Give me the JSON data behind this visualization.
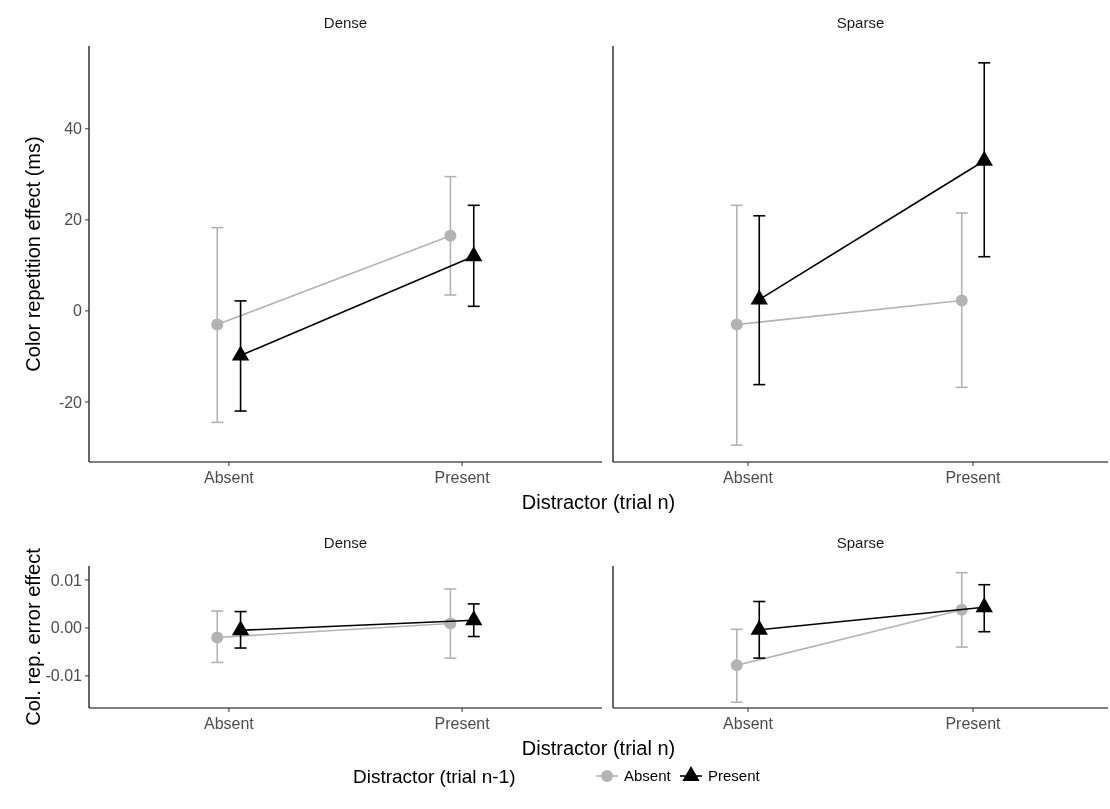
{
  "chart_data": [
    {
      "type": "line",
      "title": "Dense",
      "ylabel": "Color repetition effect (ms)",
      "xlabel": "Distractor (trial n)",
      "categories": [
        "Absent",
        "Present"
      ],
      "ylim": [
        -33.2,
        58.2
      ],
      "yticks": [
        -20,
        0,
        20,
        40
      ],
      "grid": false,
      "legend": false,
      "series": [
        {
          "color": "#b3b3b3",
          "marker": "circle",
          "values": [
            -3,
            16.5
          ],
          "errors": [
            [
              -24.5,
              18.3
            ],
            [
              3.5,
              29.5
            ]
          ]
        },
        {
          "color": "#000000",
          "marker": "triangle",
          "values": [
            -9.8,
            12
          ],
          "errors": [
            [
              -22,
              2.2
            ],
            [
              1,
              23.2
            ]
          ]
        }
      ]
    },
    {
      "type": "line",
      "title": "Sparse",
      "categories": [
        "Absent",
        "Present"
      ],
      "ylim": [
        -33.2,
        58.2
      ],
      "tick_labels": "x",
      "grid": false,
      "legend": false,
      "series": [
        {
          "color": "#b3b3b3",
          "marker": "circle",
          "values": [
            -3,
            2.3
          ],
          "errors": [
            [
              -29.5,
              23.2
            ],
            [
              -16.8,
              21.5
            ]
          ]
        },
        {
          "color": "#000000",
          "marker": "triangle",
          "values": [
            2.5,
            33
          ],
          "errors": [
            [
              -16.2,
              20.9
            ],
            [
              11.9,
              54.5
            ]
          ]
        }
      ]
    },
    {
      "type": "line",
      "title": "Dense",
      "ylabel": "Col. rep. error effect",
      "xlabel": "Distractor (trial n)",
      "categories": [
        "Absent",
        "Present"
      ],
      "ylim": [
        -0.0167,
        0.0129
      ],
      "yticks": [
        {
          "value": -0.01,
          "label": "-0.01"
        },
        {
          "value": 0,
          "label": "0.00"
        },
        {
          "value": 0.01,
          "label": "0.01"
        }
      ],
      "grid": false,
      "legend": false,
      "series": [
        {
          "color": "#b3b3b3",
          "marker": "circle",
          "values": [
            -0.002,
            0.0009
          ],
          "errors": [
            [
              -0.0072,
              0.0035
            ],
            [
              -0.0063,
              0.0081
            ]
          ]
        },
        {
          "color": "#000000",
          "marker": "triangle",
          "values": [
            -0.0005,
            0.0016
          ],
          "errors": [
            [
              -0.0042,
              0.0034
            ],
            [
              -0.0018,
              0.005
            ]
          ]
        }
      ]
    },
    {
      "type": "line",
      "title": "Sparse",
      "categories": [
        "Absent",
        "Present"
      ],
      "ylim": [
        -0.0167,
        0.0129
      ],
      "tick_labels": "x",
      "grid": false,
      "legend": "bottom",
      "legend_title": "Distractor (trial n-1)",
      "series": [
        {
          "name": "Absent",
          "color": "#b3b3b3",
          "marker": "circle",
          "values": [
            -0.0078,
            0.0038
          ],
          "errors": [
            [
              -0.0155,
              -0.0003
            ],
            [
              -0.004,
              0.0115
            ]
          ]
        },
        {
          "name": "Present",
          "color": "#000000",
          "marker": "triangle",
          "values": [
            -0.0004,
            0.0043
          ],
          "errors": [
            [
              -0.0063,
              0.0055
            ],
            [
              -0.0008,
              0.009
            ]
          ]
        }
      ]
    }
  ]
}
